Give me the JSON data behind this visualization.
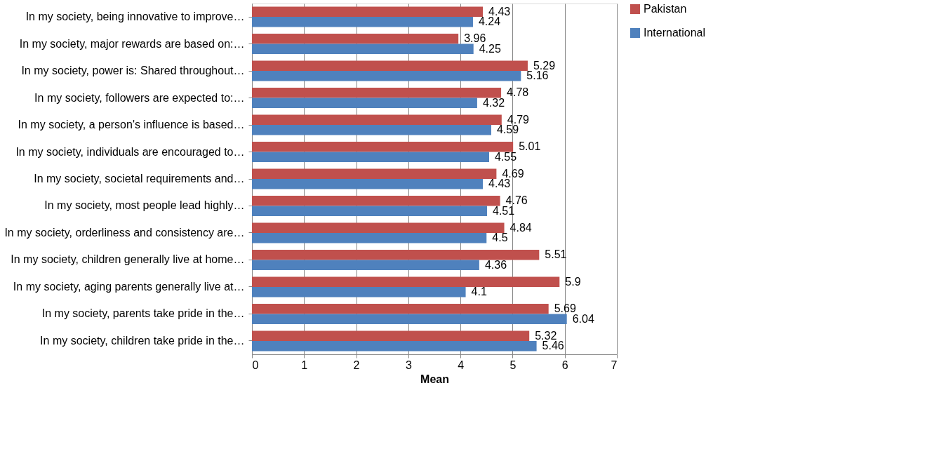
{
  "chart_data": {
    "type": "bar",
    "orientation": "horizontal",
    "xlabel": "Mean",
    "categories": [
      "In my society, being innovative to improve…",
      "In my society, major rewards are based on:…",
      "In my society, power is: Shared throughout…",
      "In my society, followers are expected to:…",
      "In my society, a person's influence is based…",
      "In my society, individuals are encouraged to…",
      "In my society, societal requirements and…",
      "In my society, most people lead highly…",
      "In my society, orderliness and consistency are…",
      "In my society, children generally live at home…",
      "In my society, aging parents generally live at…",
      "In my society, parents take pride in the…",
      "In my society, children take pride in the…"
    ],
    "series": [
      {
        "name": "Pakistan",
        "color": "#c0504d",
        "values": [
          4.43,
          3.96,
          5.29,
          4.78,
          4.79,
          5.01,
          4.69,
          4.76,
          4.84,
          5.51,
          5.9,
          5.69,
          5.32
        ]
      },
      {
        "name": "International",
        "color": "#4f81bd",
        "values": [
          4.24,
          4.25,
          5.16,
          4.32,
          4.59,
          4.55,
          4.43,
          4.51,
          4.5,
          4.36,
          4.1,
          6.04,
          5.46
        ]
      }
    ],
    "xlim": [
      0,
      7
    ],
    "xticks": [
      0,
      1,
      2,
      3,
      4,
      5,
      6,
      7
    ],
    "grid": "x",
    "legend": "right",
    "data_labels": true
  }
}
